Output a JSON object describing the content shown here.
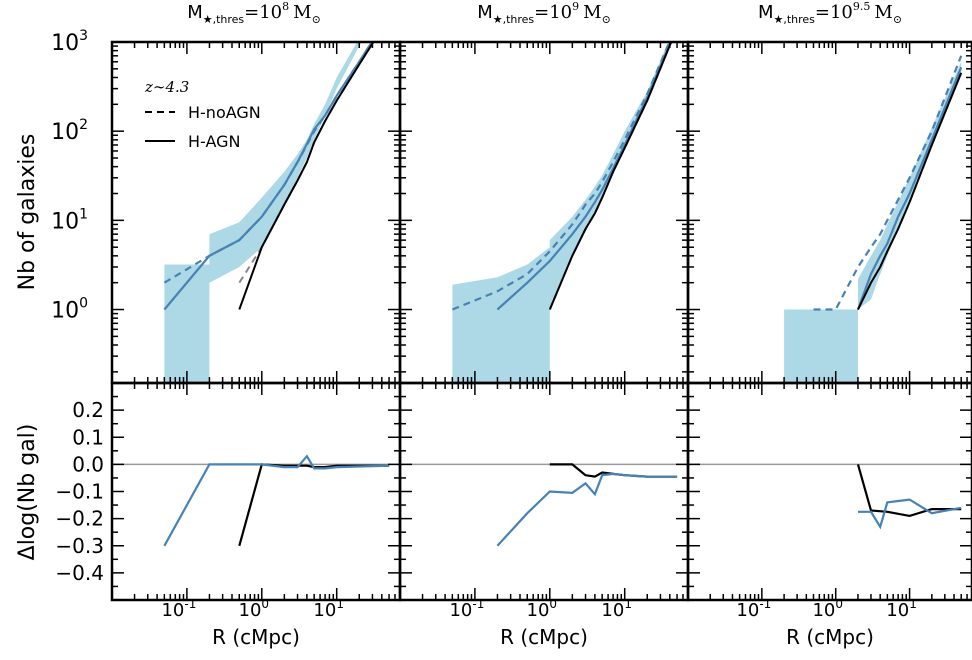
{
  "chart_data": {
    "type": "line",
    "shared": {
      "xscale": "log",
      "xlim": [
        0.01,
        70
      ],
      "xticks": [
        {
          "v": 0.1,
          "label": "10",
          "exp": "-1"
        },
        {
          "v": 1,
          "label": "10",
          "exp": "0"
        },
        {
          "v": 10,
          "label": "10",
          "exp": "1"
        }
      ],
      "xlabel": "R (cMpc)",
      "top_ylabel": "Nb of galaxies",
      "top_yscale": "log",
      "top_ylim": [
        0.15,
        1000
      ],
      "top_yticks": [
        {
          "v": 1,
          "label": "10",
          "exp": "0"
        },
        {
          "v": 10,
          "label": "10",
          "exp": "1"
        },
        {
          "v": 100,
          "label": "10",
          "exp": "2"
        },
        {
          "v": 1000,
          "label": "10",
          "exp": "3"
        }
      ],
      "bottom_ylabel": "Δlog(Nb gal)",
      "bottom_ylim": [
        -0.5,
        0.3
      ],
      "bottom_yticks": [
        "0.2",
        "0.1",
        "0.0",
        "−0.1",
        "−0.2",
        "−0.3",
        "−0.4"
      ],
      "bottom_ytick_values": [
        0.2,
        0.1,
        0.0,
        -0.1,
        -0.2,
        -0.3,
        -0.4
      ],
      "legend": {
        "redshift": "z∼4.3",
        "entries": [
          {
            "label": "H-noAGN",
            "style": "dashed"
          },
          {
            "label": "H-AGN",
            "style": "solid"
          }
        ],
        "placement": "upper-left"
      },
      "colors": {
        "black": "#000000",
        "blue": "#4682b4",
        "band": "#add8e6",
        "zero": "#999999",
        "gray": "#888888"
      }
    },
    "panels": [
      {
        "title_main": "M",
        "title_sub": "★,thres",
        "title_eq": "=10",
        "title_exp": "8",
        "title_unit": "M",
        "title_unit_sub": "⊙",
        "band": {
          "x": [
            0.05,
            0.2,
            0.2,
            0.5,
            1.0,
            2.0,
            3.0,
            4.0,
            5.0,
            7.0,
            10,
            20,
            50
          ],
          "lo": [
            0.15,
            0.15,
            2.0,
            3.0,
            5.0,
            15,
            30,
            50,
            80,
            150,
            300,
            900,
            3000
          ],
          "hi": [
            3.2,
            3.2,
            7.0,
            9.5,
            18,
            35,
            55,
            80,
            120,
            200,
            400,
            1100,
            3200
          ]
        },
        "series": [
          {
            "name": "H-noAGN",
            "color": "blue",
            "style": "dashed",
            "x": [
              0.05,
              0.2,
              0.5,
              1.0,
              2.0,
              3.0,
              4.0,
              5.0,
              7.0,
              10,
              20,
              50
            ],
            "y": [
              2.0,
              4.0,
              6.0,
              11,
              25,
              45,
              70,
              100,
              150,
              250,
              600,
              2000
            ]
          },
          {
            "name": "H-AGN",
            "color": "blue",
            "style": "solid",
            "x": [
              0.05,
              0.2,
              0.5,
              1.0,
              2.0,
              3.0,
              4.0,
              5.0,
              7.0,
              10,
              20,
              50
            ],
            "y": [
              1.0,
              4.0,
              6.0,
              11,
              25,
              45,
              72,
              105,
              150,
              250,
              600,
              2000
            ]
          },
          {
            "name": "H-noAGN",
            "color": "gray",
            "style": "dashed",
            "x": [
              0.5,
              1.0,
              2.0,
              3.0,
              4.0,
              5.0,
              7.0,
              10,
              20,
              50
            ],
            "y": [
              2.0,
              5.0,
              15,
              28,
              45,
              75,
              130,
              220,
              560,
              1900
            ]
          },
          {
            "name": "H-AGN",
            "color": "black",
            "style": "solid",
            "x": [
              0.5,
              1.0,
              2.0,
              3.0,
              4.0,
              5.0,
              7.0,
              10,
              20,
              50
            ],
            "y": [
              1.0,
              5.0,
              15,
              28,
              45,
              75,
              130,
              220,
              560,
              1900
            ]
          }
        ],
        "delta": [
          {
            "color": "black",
            "x": [
              0.5,
              1.0,
              2.0,
              3.0,
              4.0,
              5.0,
              7.0,
              10,
              20,
              50
            ],
            "y": [
              -0.3,
              0.0,
              -0.005,
              -0.005,
              -0.005,
              -0.01,
              -0.01,
              -0.005,
              -0.005,
              -0.005
            ]
          },
          {
            "color": "blue",
            "x": [
              0.05,
              0.2,
              0.5,
              1.0,
              2.0,
              3.0,
              4.0,
              5.0,
              7.0,
              10,
              20,
              50
            ],
            "y": [
              -0.3,
              0.0,
              0.0,
              0.0,
              -0.01,
              -0.01,
              0.03,
              -0.015,
              -0.015,
              -0.01,
              -0.008,
              -0.005
            ]
          }
        ]
      },
      {
        "title_main": "M",
        "title_sub": "★,thres",
        "title_eq": "=10",
        "title_exp": "9",
        "title_unit": "M",
        "title_unit_sub": "⊙",
        "band": {
          "x": [
            0.05,
            0.2,
            0.5,
            1.0,
            1.0,
            2.0,
            3.0,
            4.0,
            5.0,
            7.0,
            10,
            20,
            50
          ],
          "lo": [
            0.15,
            0.15,
            0.15,
            0.15,
            1.0,
            4.0,
            8.0,
            12,
            18,
            35,
            70,
            220,
            1400
          ],
          "hi": [
            1.9,
            2.3,
            3.2,
            5.0,
            6.0,
            11,
            17,
            24,
            32,
            55,
            100,
            280,
            1700
          ]
        },
        "series": [
          {
            "name": "H-noAGN",
            "color": "blue",
            "style": "dashed",
            "x": [
              0.05,
              0.2,
              0.5,
              1.0,
              2.0,
              3.0,
              4.0,
              5.0,
              7.0,
              10,
              20,
              50
            ],
            "y": [
              1.0,
              1.6,
              2.5,
              4.5,
              9.0,
              15,
              20,
              27,
              45,
              80,
              260,
              1600
            ]
          },
          {
            "name": "H-AGN",
            "color": "blue",
            "style": "solid",
            "x": [
              0.2,
              0.5,
              1.0,
              2.0,
              3.0,
              4.0,
              5.0,
              7.0,
              10,
              20,
              50
            ],
            "y": [
              1.0,
              2.0,
              3.5,
              7.0,
              11,
              16,
              22,
              38,
              70,
              240,
              1500
            ]
          },
          {
            "name": "H-noAGN",
            "color": "gray",
            "style": "dashed",
            "x": [
              1.0,
              2.0,
              3.0,
              4.0,
              5.0,
              7.0,
              10,
              20,
              50
            ],
            "y": [
              1.0,
              4.0,
              8.0,
              12,
              18,
              35,
              65,
              220,
              1450
            ]
          },
          {
            "name": "H-AGN",
            "color": "black",
            "style": "solid",
            "x": [
              1.0,
              2.0,
              3.0,
              4.0,
              5.0,
              7.0,
              10,
              20,
              50
            ],
            "y": [
              1.0,
              4.0,
              8.0,
              12,
              18,
              35,
              65,
              220,
              1450
            ]
          }
        ],
        "delta": [
          {
            "color": "black",
            "x": [
              1.0,
              2.0,
              3.0,
              4.0,
              5.0,
              7.0,
              10,
              20,
              50
            ],
            "y": [
              0.0,
              0.0,
              -0.04,
              -0.045,
              -0.03,
              -0.035,
              -0.04,
              -0.045,
              -0.045
            ]
          },
          {
            "color": "blue",
            "x": [
              0.2,
              0.5,
              1.0,
              2.0,
              3.0,
              4.0,
              5.0,
              7.0,
              10,
              20,
              50
            ],
            "y": [
              -0.3,
              -0.18,
              -0.1,
              -0.105,
              -0.07,
              -0.11,
              -0.04,
              -0.035,
              -0.04,
              -0.045,
              -0.045
            ]
          }
        ]
      },
      {
        "title_main": "M",
        "title_sub": "★,thres",
        "title_eq": "=10",
        "title_exp": "9.5",
        "title_unit": "M",
        "title_unit_sub": "⊙",
        "band": {
          "x": [
            0.2,
            0.5,
            1.0,
            2.0,
            2.0,
            3.0,
            4.0,
            5.0,
            7.0,
            10,
            20,
            50
          ],
          "lo": [
            0.15,
            0.15,
            0.15,
            0.15,
            1.0,
            1.3,
            2.5,
            4.0,
            8.0,
            16,
            70,
            420
          ],
          "hi": [
            1.0,
            1.0,
            1.0,
            1.0,
            2.2,
            4.0,
            6.0,
            9.0,
            16,
            30,
            110,
            600
          ]
        },
        "series": [
          {
            "name": "H-noAGN",
            "color": "blue",
            "style": "dashed",
            "x": [
              0.5,
              1.0,
              2.0,
              3.0,
              4.0,
              5.0,
              7.0,
              10,
              20,
              50
            ],
            "y": [
              1.0,
              1.0,
              3.0,
              5.0,
              7.0,
              10,
              17,
              30,
              100,
              700
            ]
          },
          {
            "name": "H-AGN",
            "color": "blue",
            "style": "solid",
            "x": [
              2.0,
              3.0,
              4.0,
              5.0,
              7.0,
              10,
              20,
              50
            ],
            "y": [
              1.0,
              2.5,
              4.0,
              5.5,
              11,
              20,
              80,
              520
            ]
          },
          {
            "name": "H-noAGN",
            "color": "gray",
            "style": "dashed",
            "x": [
              2.0,
              3.0,
              4.0,
              5.0,
              7.0,
              10,
              20,
              50
            ],
            "y": [
              1.0,
              2.0,
              3.0,
              4.5,
              8.0,
              16,
              70,
              450
            ]
          },
          {
            "name": "H-AGN",
            "color": "black",
            "style": "solid",
            "x": [
              2.0,
              3.0,
              4.0,
              5.0,
              7.0,
              10,
              20,
              50
            ],
            "y": [
              1.0,
              2.0,
              3.0,
              4.5,
              8.0,
              16,
              70,
              450
            ]
          }
        ],
        "delta": [
          {
            "color": "black",
            "x": [
              2.0,
              3.0,
              5.0,
              10,
              20,
              50
            ],
            "y": [
              0.0,
              -0.17,
              -0.175,
              -0.19,
              -0.165,
              -0.165
            ]
          },
          {
            "color": "blue",
            "x": [
              2.0,
              3.0,
              4.0,
              5.0,
              7.0,
              10,
              20,
              50
            ],
            "y": [
              -0.175,
              -0.175,
              -0.23,
              -0.14,
              -0.135,
              -0.13,
              -0.18,
              -0.16
            ]
          }
        ]
      }
    ]
  }
}
